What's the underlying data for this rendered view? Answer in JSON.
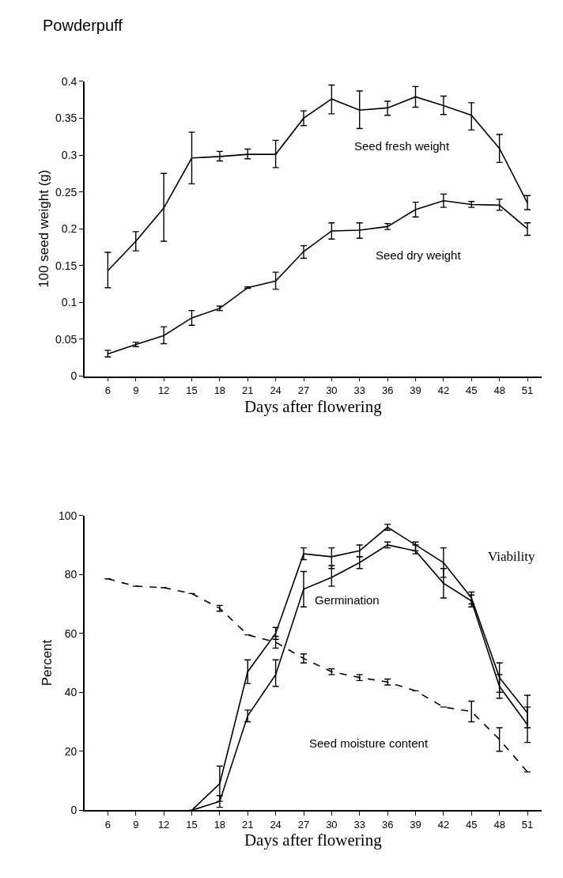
{
  "chart_data": [
    {
      "type": "line",
      "title": "Powderpuff",
      "xlabel": "Days after flowering",
      "ylabel": "100 seed weight (g)",
      "x": [
        6,
        9,
        12,
        15,
        18,
        21,
        24,
        27,
        30,
        33,
        36,
        39,
        42,
        45,
        48,
        51
      ],
      "xlim": [
        3.5,
        52.5
      ],
      "xticks": [
        6,
        9,
        12,
        15,
        18,
        21,
        24,
        27,
        30,
        33,
        36,
        39,
        42,
        45,
        48,
        51
      ],
      "ylim": [
        0,
        0.4
      ],
      "yticks": [
        0,
        0.05,
        0.1,
        0.15,
        0.2,
        0.25,
        0.3,
        0.35,
        0.4
      ],
      "marker": "none",
      "line_style": "solid",
      "series": [
        {
          "name": "Seed fresh weight",
          "color": "#000000",
          "values": [
            0.143,
            0.183,
            0.228,
            0.296,
            0.298,
            0.301,
            0.301,
            0.35,
            0.376,
            0.361,
            0.364,
            0.379,
            0.367,
            0.354,
            0.309,
            0.235
          ],
          "errors": [
            [
              0.12,
              0.168
            ],
            [
              0.17,
              0.196
            ],
            [
              0.183,
              0.275
            ],
            [
              0.261,
              0.331
            ],
            [
              0.292,
              0.305
            ],
            [
              0.295,
              0.308
            ],
            [
              0.283,
              0.32
            ],
            [
              0.34,
              0.36
            ],
            [
              0.356,
              0.395
            ],
            [
              0.336,
              0.387
            ],
            [
              0.354,
              0.373
            ],
            [
              0.365,
              0.393
            ],
            [
              0.355,
              0.38
            ],
            [
              0.334,
              0.371
            ],
            [
              0.29,
              0.328
            ],
            [
              0.226,
              0.245
            ]
          ]
        },
        {
          "name": "Seed dry weight",
          "color": "#000000",
          "values": [
            0.03,
            0.043,
            0.055,
            0.079,
            0.092,
            0.12,
            0.129,
            0.169,
            0.197,
            0.198,
            0.203,
            0.226,
            0.238,
            0.233,
            0.232,
            0.2
          ],
          "errors": [
            [
              0.026,
              0.035
            ],
            [
              0.04,
              0.046
            ],
            [
              0.044,
              0.067
            ],
            [
              0.069,
              0.089
            ],
            [
              0.089,
              0.095
            ],
            [
              0.119,
              0.121
            ],
            [
              0.118,
              0.141
            ],
            [
              0.16,
              0.177
            ],
            [
              0.186,
              0.208
            ],
            [
              0.187,
              0.208
            ],
            [
              0.199,
              0.207
            ],
            [
              0.216,
              0.236
            ],
            [
              0.229,
              0.247
            ],
            [
              0.229,
              0.237
            ],
            [
              0.225,
              0.24
            ],
            [
              0.191,
              0.208
            ]
          ]
        }
      ]
    },
    {
      "type": "line",
      "xlabel": "Days after flowering",
      "ylabel": "Percent",
      "x": [
        6,
        9,
        12,
        15,
        18,
        21,
        24,
        27,
        30,
        33,
        36,
        39,
        42,
        45,
        48,
        51
      ],
      "xlim": [
        3.5,
        52.5
      ],
      "xticks": [
        6,
        9,
        12,
        15,
        18,
        21,
        24,
        27,
        30,
        33,
        36,
        39,
        42,
        45,
        48,
        51
      ],
      "ylim": [
        0,
        100
      ],
      "yticks": [
        0,
        20,
        40,
        60,
        80,
        100
      ],
      "marker": "none",
      "series": [
        {
          "name": "Viability",
          "color": "#000000",
          "line_style": "solid",
          "values": [
            null,
            null,
            null,
            0,
            9,
            47,
            60,
            87,
            86,
            88,
            96,
            90,
            84,
            72,
            45,
            33
          ],
          "errors": [
            null,
            null,
            null,
            null,
            [
              3,
              15
            ],
            [
              43,
              51
            ],
            [
              58,
              62
            ],
            [
              85,
              89
            ],
            [
              82,
              89
            ],
            [
              86,
              90
            ],
            [
              95,
              97
            ],
            [
              88,
              91
            ],
            [
              79,
              89
            ],
            [
              70,
              74
            ],
            [
              40,
              50
            ],
            [
              28,
              39
            ]
          ]
        },
        {
          "name": "Germination",
          "color": "#000000",
          "line_style": "solid",
          "values": [
            null,
            null,
            null,
            0,
            3,
            32,
            46,
            75,
            79,
            84,
            90,
            88,
            77,
            71,
            42,
            29
          ],
          "errors": [
            null,
            null,
            null,
            null,
            [
              1,
              5
            ],
            [
              30,
              34
            ],
            [
              42,
              51
            ],
            [
              69,
              81
            ],
            [
              76,
              83
            ],
            [
              82,
              86
            ],
            [
              89,
              91
            ],
            [
              87,
              90
            ],
            [
              72,
              82
            ],
            [
              69,
              73
            ],
            [
              38,
              46
            ],
            [
              23,
              35
            ]
          ]
        },
        {
          "name": "Seed moisture content",
          "color": "#000000",
          "line_style": "dashed",
          "values": [
            78.5,
            76,
            75.5,
            73.5,
            68.5,
            59.5,
            57,
            51.5,
            47,
            45,
            43.5,
            40.5,
            35,
            33.5,
            24,
            13
          ],
          "errors": [
            null,
            null,
            null,
            null,
            [
              67.5,
              69.5
            ],
            null,
            [
              55,
              59
            ],
            [
              50,
              53
            ],
            [
              46,
              48
            ],
            [
              44,
              46
            ],
            [
              42.5,
              44.5
            ],
            null,
            null,
            [
              30,
              37
            ],
            [
              20,
              28
            ],
            null
          ]
        }
      ]
    }
  ]
}
